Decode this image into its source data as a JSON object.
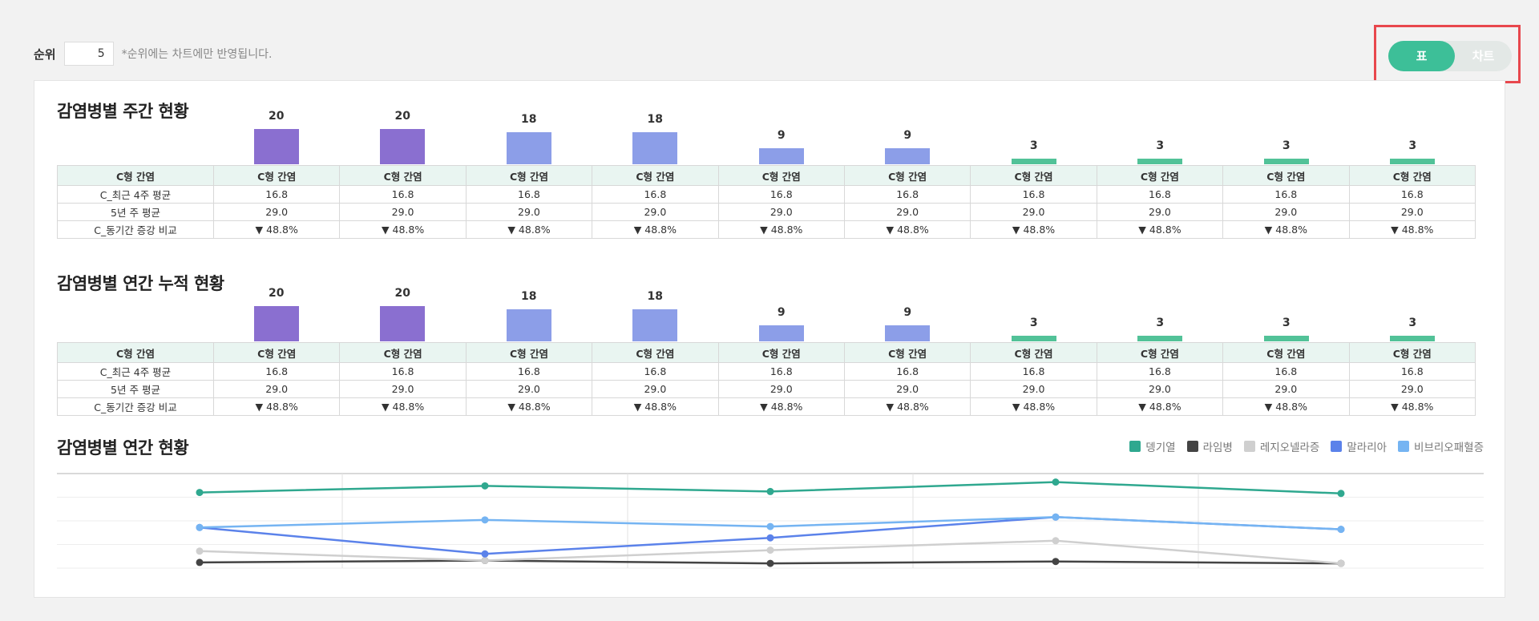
{
  "toolbar": {
    "rank_label": "순위",
    "rank_value": "5",
    "rank_note": "*순위에는 차트에만 반영됩니다."
  },
  "view_toggle": {
    "table_label": "표",
    "chart_label": "차트",
    "selected": "표"
  },
  "colors": {
    "accent": "#3dbf98",
    "purple": "#8a6fd0",
    "blue": "#8c9ee8",
    "green": "#52c298",
    "down": "#3a6ff0"
  },
  "weekly": {
    "title": "감염병별 주간 현황",
    "bars": [
      20,
      20,
      18,
      18,
      9,
      9,
      3,
      3,
      3,
      3
    ],
    "bar_colors": [
      "purple",
      "purple",
      "blue",
      "blue",
      "blue",
      "blue",
      "green",
      "green",
      "green",
      "green"
    ],
    "header": [
      "C형 간염",
      "C형 간염",
      "C형 간염",
      "C형 간염",
      "C형 간염",
      "C형 간염",
      "C형 간염",
      "C형 간염",
      "C형 간염",
      "C형 간염",
      "C형 간염"
    ],
    "rows": [
      [
        "C_최근 4주 평균",
        "16.8",
        "16.8",
        "16.8",
        "16.8",
        "16.8",
        "16.8",
        "16.8",
        "16.8",
        "16.8",
        "16.8"
      ],
      [
        "5년 주 평균",
        "29.0",
        "29.0",
        "29.0",
        "29.0",
        "29.0",
        "29.0",
        "29.0",
        "29.0",
        "29.0",
        "29.0"
      ],
      [
        "C_동기간 증강 비교",
        "▼ 48.8%",
        "▼ 48.8%",
        "▼ 48.8%",
        "▼ 48.8%",
        "▼ 48.8%",
        "▼ 48.8%",
        "▼ 48.8%",
        "▼ 48.8%",
        "▼ 48.8%",
        "▼ 48.8%"
      ]
    ]
  },
  "cumulative": {
    "title": "감염병별 연간 누적 현황",
    "bars": [
      20,
      20,
      18,
      18,
      9,
      9,
      3,
      3,
      3,
      3
    ],
    "bar_colors": [
      "purple",
      "purple",
      "blue",
      "blue",
      "blue",
      "blue",
      "green",
      "green",
      "green",
      "green"
    ],
    "header": [
      "C형 간염",
      "C형 간염",
      "C형 간염",
      "C형 간염",
      "C형 간염",
      "C형 간염",
      "C형 간염",
      "C형 간염",
      "C형 간염",
      "C형 간염",
      "C형 간염"
    ],
    "rows": [
      [
        "C_최근 4주 평균",
        "16.8",
        "16.8",
        "16.8",
        "16.8",
        "16.8",
        "16.8",
        "16.8",
        "16.8",
        "16.8",
        "16.8"
      ],
      [
        "5년 주 평균",
        "29.0",
        "29.0",
        "29.0",
        "29.0",
        "29.0",
        "29.0",
        "29.0",
        "29.0",
        "29.0",
        "29.0"
      ],
      [
        "C_동기간 증강 비교",
        "▼ 48.8%",
        "▼ 48.8%",
        "▼ 48.8%",
        "▼ 48.8%",
        "▼ 48.8%",
        "▼ 48.8%",
        "▼ 48.8%",
        "▼ 48.8%",
        "▼ 48.8%",
        "▼ 48.8%"
      ]
    ]
  },
  "annual": {
    "title": "감염병별 연간 현황",
    "legend": [
      {
        "name": "뎅기열",
        "color": "#2fa88f"
      },
      {
        "name": "라임병",
        "color": "#444444"
      },
      {
        "name": "레지오넬라증",
        "color": "#cfcfcf"
      },
      {
        "name": "말라리아",
        "color": "#5b82ea"
      },
      {
        "name": "비브리오패혈증",
        "color": "#75b4f2"
      }
    ]
  },
  "chart_data": {
    "type": "line",
    "x": [
      1,
      2,
      3,
      4,
      5
    ],
    "ylim": [
      0,
      100
    ],
    "grid": true,
    "legend_position": "top-right",
    "series": [
      {
        "name": "뎅기열",
        "values": [
          80,
          87,
          81,
          91,
          79
        ]
      },
      {
        "name": "라임병",
        "values": [
          6,
          8,
          5,
          7,
          5
        ]
      },
      {
        "name": "레지오넬라증",
        "values": [
          18,
          8,
          19,
          29,
          5
        ]
      },
      {
        "name": "말라리아",
        "values": [
          43,
          15,
          32,
          54,
          41
        ]
      },
      {
        "name": "비브리오패혈증",
        "values": [
          43,
          51,
          44,
          54,
          41
        ]
      }
    ]
  }
}
